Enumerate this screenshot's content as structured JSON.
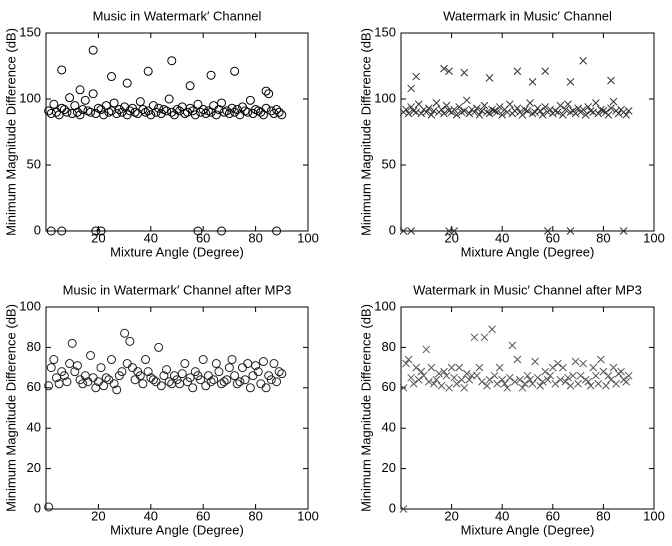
{
  "chart_data": [
    {
      "type": "scatter",
      "title": "Music in Watermark′ Channel",
      "xlabel": "Mixture Angle (Degree)",
      "ylabel": "Minimum Magnitude Difference (dB)",
      "marker": "o",
      "color": "#000000",
      "xlim": [
        0,
        100
      ],
      "ylim": [
        0,
        150
      ],
      "xticks": [
        20,
        40,
        60,
        80,
        100
      ],
      "yticks": [
        0,
        50,
        100,
        150
      ],
      "x": [
        1,
        2,
        3,
        4,
        5,
        6,
        7,
        8,
        9,
        10,
        11,
        12,
        13,
        14,
        15,
        16,
        17,
        18,
        19,
        20,
        21,
        22,
        23,
        24,
        25,
        26,
        27,
        28,
        29,
        30,
        31,
        32,
        33,
        34,
        35,
        36,
        37,
        38,
        39,
        40,
        41,
        42,
        43,
        44,
        45,
        46,
        47,
        48,
        49,
        50,
        51,
        52,
        53,
        54,
        55,
        56,
        57,
        58,
        59,
        60,
        61,
        62,
        63,
        64,
        65,
        66,
        67,
        68,
        69,
        70,
        71,
        72,
        73,
        74,
        75,
        76,
        77,
        78,
        79,
        80,
        81,
        82,
        83,
        84,
        85,
        86,
        87,
        88,
        89,
        90,
        6,
        18,
        13,
        25,
        39,
        48,
        63,
        72,
        31,
        55,
        84,
        2,
        6,
        19,
        21,
        58,
        67,
        88
      ],
      "values": [
        91,
        89,
        96,
        90,
        88,
        93,
        92,
        90,
        101,
        89,
        95,
        90,
        88,
        92,
        99,
        91,
        90,
        104,
        89,
        93,
        92,
        88,
        95,
        90,
        91,
        97,
        89,
        92,
        90,
        94,
        88,
        91,
        93,
        90,
        89,
        98,
        92,
        90,
        91,
        88,
        95,
        90,
        93,
        89,
        92,
        91,
        100,
        90,
        88,
        92,
        91,
        94,
        89,
        90,
        93,
        91,
        88,
        96,
        90,
        92,
        89,
        91,
        90,
        95,
        88,
        92,
        97,
        90,
        91,
        89,
        93,
        90,
        92,
        88,
        94,
        91,
        90,
        99,
        89,
        92,
        91,
        90,
        88,
        93,
        104,
        91,
        89,
        92,
        90,
        88,
        122,
        137,
        107,
        117,
        121,
        129,
        118,
        121,
        112,
        110,
        106,
        0,
        0,
        0,
        0,
        0,
        0,
        0
      ]
    },
    {
      "type": "scatter",
      "title": "Watermark in Music′ Channel",
      "xlabel": "Mixture Angle (Degree)",
      "ylabel": "Minimum Magnitude Difference (dB)",
      "marker": "x",
      "color": "#333333",
      "xlim": [
        0,
        100
      ],
      "ylim": [
        0,
        150
      ],
      "xticks": [
        20,
        40,
        60,
        80,
        100
      ],
      "yticks": [
        0,
        50,
        100,
        150
      ],
      "x": [
        1,
        2,
        3,
        4,
        5,
        6,
        7,
        8,
        9,
        10,
        11,
        12,
        13,
        14,
        15,
        16,
        17,
        18,
        19,
        20,
        21,
        22,
        23,
        24,
        25,
        26,
        27,
        28,
        29,
        30,
        31,
        32,
        33,
        34,
        35,
        36,
        37,
        38,
        39,
        40,
        41,
        42,
        43,
        44,
        45,
        46,
        47,
        48,
        49,
        50,
        51,
        52,
        53,
        54,
        55,
        56,
        57,
        58,
        59,
        60,
        61,
        62,
        63,
        64,
        65,
        66,
        67,
        68,
        69,
        70,
        71,
        72,
        73,
        74,
        75,
        76,
        77,
        78,
        79,
        80,
        81,
        82,
        83,
        84,
        85,
        86,
        87,
        88,
        89,
        90,
        4,
        6,
        17,
        19,
        25,
        35,
        46,
        52,
        57,
        67,
        72,
        83,
        1,
        4,
        19,
        21,
        58,
        67,
        88
      ],
      "values": [
        90,
        92,
        89,
        94,
        91,
        90,
        96,
        89,
        92,
        90,
        93,
        88,
        91,
        97,
        90,
        92,
        89,
        95,
        91,
        90,
        92,
        88,
        94,
        90,
        91,
        99,
        89,
        92,
        90,
        93,
        88,
        91,
        95,
        90,
        89,
        92,
        91,
        90,
        94,
        88,
        92,
        90,
        96,
        89,
        91,
        93,
        90,
        88,
        92,
        91,
        97,
        89,
        90,
        93,
        91,
        88,
        94,
        90,
        92,
        89,
        91,
        90,
        95,
        88,
        92,
        96,
        90,
        91,
        89,
        93,
        90,
        92,
        88,
        94,
        91,
        90,
        97,
        89,
        92,
        91,
        90,
        88,
        93,
        98,
        91,
        89,
        92,
        90,
        88,
        91,
        108,
        117,
        123,
        121,
        120,
        116,
        121,
        113,
        121,
        113,
        129,
        114,
        0,
        0,
        0,
        0,
        0,
        0,
        0
      ]
    },
    {
      "type": "scatter",
      "title": "Music in Watermark′ Channel after MP3",
      "xlabel": "Mixture Angle (Degree)",
      "ylabel": "Minimum Magnitude Difference (dB)",
      "marker": "o",
      "color": "#222222",
      "xlim": [
        0,
        100
      ],
      "ylim": [
        0,
        100
      ],
      "xticks": [
        20,
        40,
        60,
        80,
        100
      ],
      "yticks": [
        0,
        20,
        40,
        60,
        80,
        100
      ],
      "x": [
        1,
        2,
        3,
        4,
        5,
        6,
        7,
        8,
        9,
        10,
        11,
        12,
        13,
        14,
        15,
        16,
        17,
        18,
        19,
        20,
        21,
        22,
        23,
        24,
        25,
        26,
        27,
        28,
        29,
        30,
        31,
        32,
        33,
        34,
        35,
        36,
        37,
        38,
        39,
        40,
        41,
        42,
        43,
        44,
        45,
        46,
        47,
        48,
        49,
        50,
        51,
        52,
        53,
        54,
        55,
        56,
        57,
        58,
        59,
        60,
        61,
        62,
        63,
        64,
        65,
        66,
        67,
        68,
        69,
        70,
        71,
        72,
        73,
        74,
        75,
        76,
        77,
        78,
        79,
        80,
        81,
        82,
        83,
        84,
        85,
        86,
        87,
        88,
        89,
        90,
        1
      ],
      "values": [
        61,
        70,
        74,
        65,
        62,
        68,
        66,
        63,
        72,
        82,
        68,
        71,
        64,
        62,
        66,
        63,
        76,
        65,
        60,
        63,
        70,
        61,
        65,
        64,
        74,
        62,
        59,
        66,
        68,
        87,
        72,
        83,
        70,
        64,
        68,
        66,
        62,
        74,
        68,
        65,
        64,
        63,
        80,
        61,
        66,
        69,
        63,
        62,
        66,
        64,
        62,
        67,
        72,
        63,
        65,
        60,
        68,
        66,
        64,
        74,
        61,
        66,
        63,
        64,
        72,
        68,
        62,
        63,
        64,
        70,
        74,
        66,
        62,
        63,
        70,
        64,
        72,
        60,
        66,
        71,
        68,
        62,
        73,
        60,
        66,
        64,
        72,
        63,
        68,
        67,
        1
      ]
    },
    {
      "type": "scatter",
      "title": "Watermark in Music′ Channel after MP3",
      "xlabel": "Mixture Angle (Degree)",
      "ylabel": "Minimum Magnitude Difference (dB)",
      "marker": "x",
      "color": "#555555",
      "xlim": [
        0,
        100
      ],
      "ylim": [
        0,
        100
      ],
      "xticks": [
        20,
        40,
        60,
        80,
        100
      ],
      "yticks": [
        0,
        20,
        40,
        60,
        80,
        100
      ],
      "x": [
        1,
        2,
        3,
        4,
        5,
        6,
        7,
        8,
        9,
        10,
        11,
        12,
        13,
        14,
        15,
        16,
        17,
        18,
        19,
        20,
        21,
        22,
        23,
        24,
        25,
        26,
        27,
        28,
        29,
        30,
        31,
        32,
        33,
        34,
        35,
        36,
        37,
        38,
        39,
        40,
        41,
        42,
        43,
        44,
        45,
        46,
        47,
        48,
        49,
        50,
        51,
        52,
        53,
        54,
        55,
        56,
        57,
        58,
        59,
        60,
        61,
        62,
        63,
        64,
        65,
        66,
        67,
        68,
        69,
        70,
        71,
        72,
        73,
        74,
        75,
        76,
        77,
        78,
        79,
        80,
        81,
        82,
        83,
        84,
        85,
        86,
        87,
        88,
        89,
        90,
        1
      ],
      "values": [
        60,
        72,
        74,
        65,
        62,
        70,
        64,
        68,
        66,
        79,
        63,
        70,
        62,
        64,
        67,
        61,
        68,
        66,
        60,
        70,
        65,
        62,
        70,
        64,
        60,
        67,
        64,
        66,
        85,
        66,
        70,
        63,
        85,
        61,
        64,
        89,
        66,
        62,
        70,
        64,
        62,
        60,
        65,
        81,
        63,
        74,
        64,
        60,
        62,
        66,
        64,
        62,
        73,
        65,
        61,
        63,
        68,
        64,
        66,
        70,
        62,
        72,
        64,
        70,
        63,
        65,
        61,
        66,
        73,
        62,
        66,
        72,
        64,
        63,
        61,
        70,
        66,
        62,
        74,
        68,
        61,
        66,
        64,
        70,
        62,
        67,
        68,
        64,
        63,
        66,
        0
      ]
    }
  ]
}
